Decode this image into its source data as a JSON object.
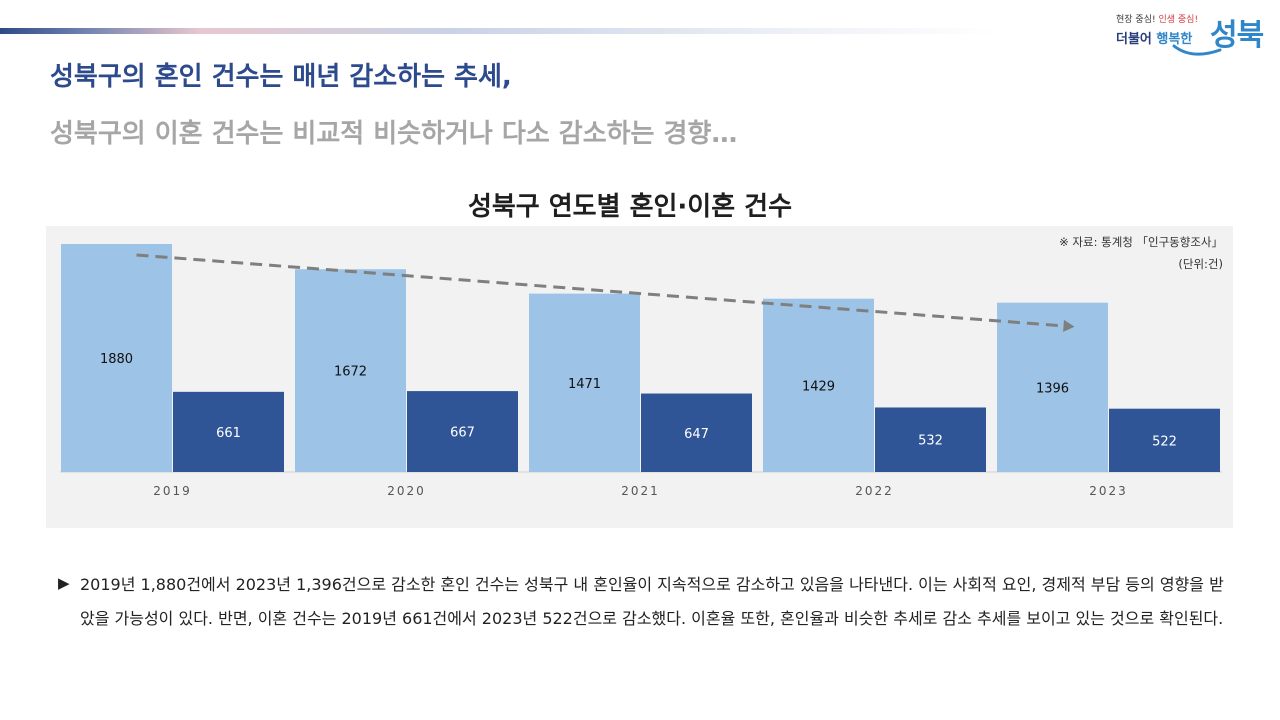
{
  "logo": {
    "slogan_part1": "현장 중심!",
    "slogan_part2": "인생 중심!",
    "sub_part1": "더불어",
    "sub_part2": "행복한",
    "main": "성북"
  },
  "headline": {
    "line1": "성북구의 혼인 건수는 매년 감소하는 추세,",
    "line2": "성북구의 이혼 건수는 비교적 비슷하거나 다소 감소하는 경향…"
  },
  "chart_data": {
    "type": "bar",
    "title": "성북구 연도별 혼인·이혼 건수",
    "categories": [
      "2019",
      "2020",
      "2021",
      "2022",
      "2023"
    ],
    "series": [
      {
        "values": [
          1880,
          1672,
          1471,
          1429,
          1396
        ],
        "color": "#9dc3e6"
      },
      {
        "values": [
          661,
          667,
          647,
          532,
          522
        ],
        "color": "#2f5597"
      }
    ],
    "trend": {
      "series_index": 0,
      "style": "dashed arrow",
      "color": "#7f7f7f"
    },
    "ylim": [
      0,
      1880
    ],
    "grid": false,
    "background": "#f2f2f2",
    "source_note": "※ 자료: 통계청 「인구동향조사」",
    "unit_note": "(단위:건)"
  },
  "description": {
    "marker": "▶",
    "text": "2019년 1,880건에서 2023년 1,396건으로 감소한 혼인 건수는 성북구 내 혼인율이 지속적으로 감소하고 있음을 나타낸다. 이는 사회적 요인, 경제적 부담 등의 영향을 받았을 가능성이 있다. 반면, 이혼 건수는 2019년 661건에서 2023년 522건으로 감소했다. 이혼율 또한, 혼인율과 비슷한 추세로 감소 추세를 보이고 있는 것으로 확인된다."
  }
}
